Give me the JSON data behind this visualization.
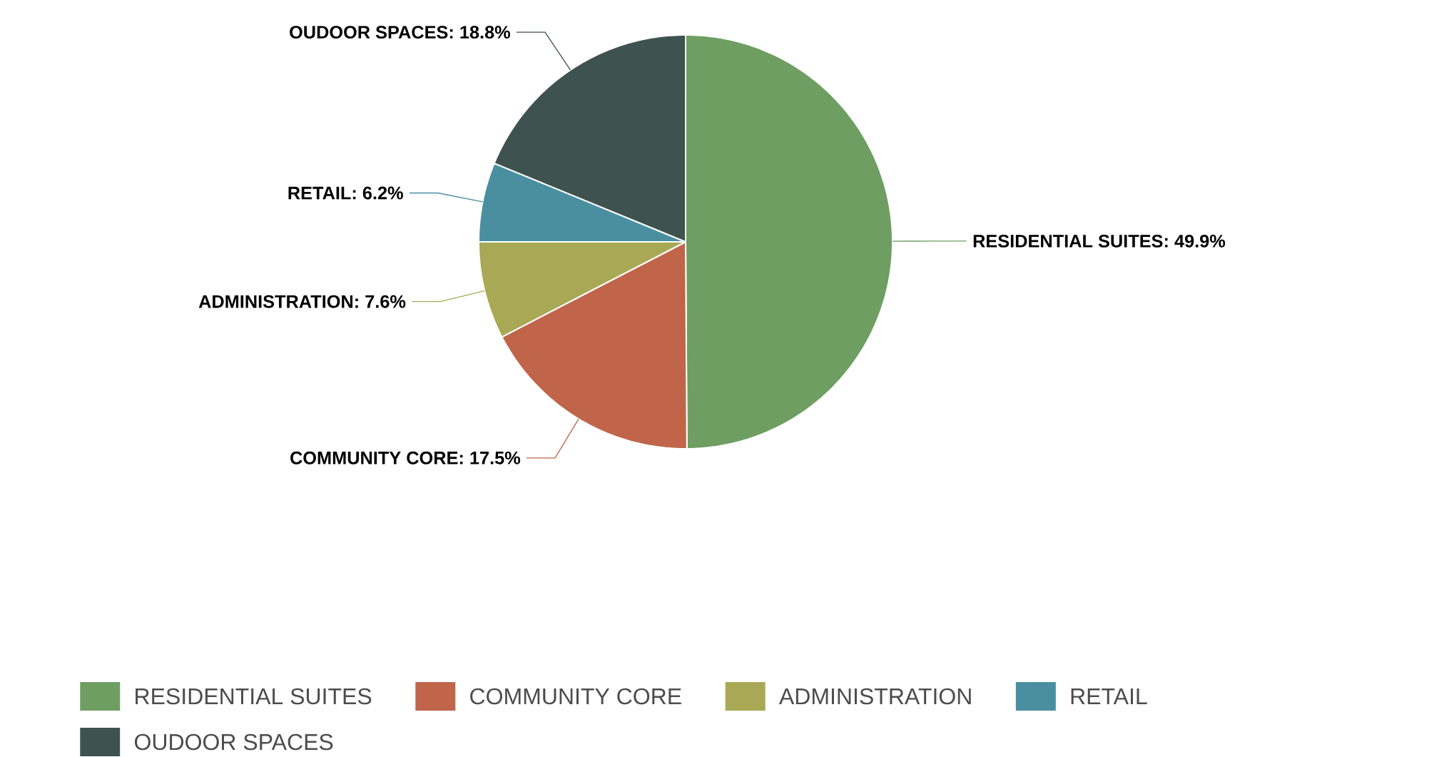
{
  "chart_data": {
    "type": "pie",
    "categories": [
      "RESIDENTIAL SUITES",
      "COMMUNITY CORE",
      "ADMINISTRATION",
      "RETAIL",
      "OUDOOR SPACES"
    ],
    "values": [
      49.9,
      17.5,
      7.6,
      6.2,
      18.8
    ],
    "value_labels": [
      "RESIDENTIAL SUITES: 49.9%",
      "COMMUNITY CORE: 17.5%",
      "ADMINISTRATION: 7.6%",
      "RETAIL: 6.2%",
      "OUDOOR SPACES: 18.8%"
    ],
    "colors": [
      "#6e9e62",
      "#c0654a",
      "#a8a855",
      "#4a8fa0",
      "#3e534f"
    ],
    "legend": "bottom"
  }
}
